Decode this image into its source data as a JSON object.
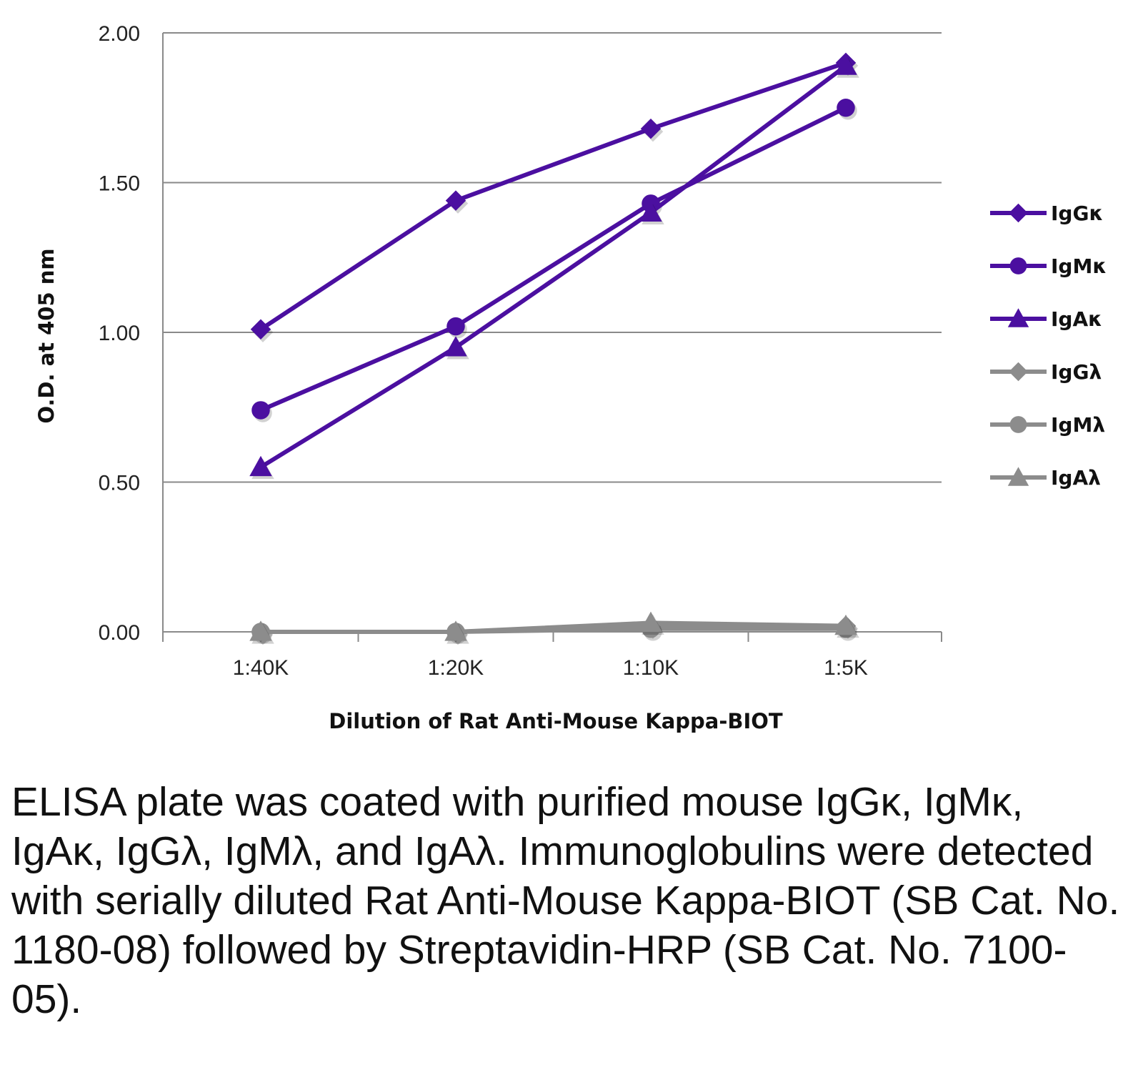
{
  "chart_data": {
    "type": "line",
    "categories": [
      "1:40K",
      "1:20K",
      "1:10K",
      "1:5K"
    ],
    "xlabel": "Dilution of Rat Anti-Mouse Kappa-BIOT",
    "ylabel": "O.D. at 405 nm",
    "ylim": [
      0,
      2.0
    ],
    "yticks": [
      "0.00",
      "0.50",
      "1.00",
      "1.50",
      "2.00"
    ],
    "grid": true,
    "legend_position": "right",
    "series": [
      {
        "name": "IgGκ",
        "marker": "diamond",
        "color": "#4B0FA0",
        "values": [
          1.01,
          1.44,
          1.68,
          1.9
        ]
      },
      {
        "name": "IgMκ",
        "marker": "circle",
        "color": "#4B0FA0",
        "values": [
          0.74,
          1.02,
          1.43,
          1.75
        ]
      },
      {
        "name": "IgAκ",
        "marker": "triangle",
        "color": "#4B0FA0",
        "values": [
          0.55,
          0.95,
          1.4,
          1.89
        ]
      },
      {
        "name": "IgGλ",
        "marker": "diamond",
        "color": "#8C8C8C",
        "values": [
          0.0,
          0.0,
          0.02,
          0.02
        ]
      },
      {
        "name": "IgMλ",
        "marker": "circle",
        "color": "#8C8C8C",
        "values": [
          0.0,
          0.0,
          0.01,
          0.01
        ]
      },
      {
        "name": "IgAλ",
        "marker": "triangle",
        "color": "#8C8C8C",
        "values": [
          0.0,
          0.0,
          0.03,
          0.02
        ]
      }
    ]
  },
  "caption": "ELISA plate was coated with purified mouse IgGκ, IgMκ, IgAκ, IgGλ, IgMλ, and IgAλ. Immunoglobulins were detected with serially diluted Rat Anti-Mouse Kappa-BIOT (SB Cat. No. 1180-08) followed by Streptavidin-HRP (SB Cat. No. 7100-05)."
}
